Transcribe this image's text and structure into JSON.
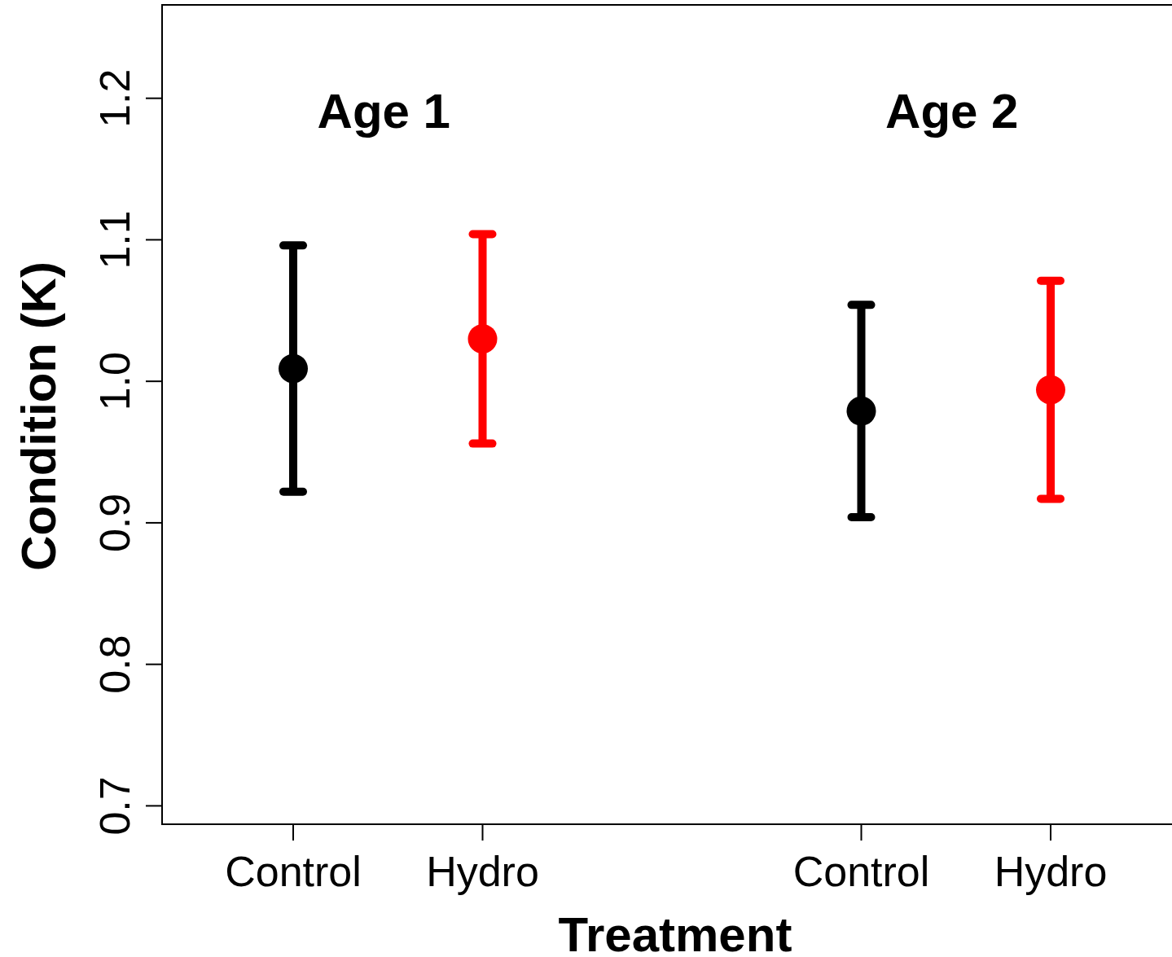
{
  "chart_data": {
    "type": "scatter",
    "xlabel": "Treatment",
    "ylabel": "Condition (K)",
    "categories": [
      "Control",
      "Hydro",
      null,
      "Control",
      "Hydro"
    ],
    "series": [
      {
        "colors": [
          "#000000",
          "#ff0000",
          null,
          "#000000",
          "#ff0000"
        ],
        "values": [
          1.009,
          1.03,
          null,
          0.979,
          0.994
        ],
        "errors": [
          0.087,
          0.074,
          null,
          0.075,
          0.077
        ]
      }
    ],
    "annotations": [
      "Age 1",
      "Age 2"
    ],
    "ylim": [
      0.687,
      1.266
    ],
    "yticks": [
      0.7,
      0.8,
      0.9,
      {
        "value": 1.0,
        "label": "1.0"
      },
      1.1,
      1.2
    ],
    "marker": "circle",
    "grid": false
  }
}
